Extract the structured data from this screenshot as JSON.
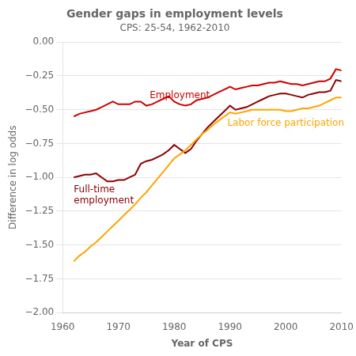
{
  "chart_data": {
    "type": "line",
    "title": "Gender gaps in employment levels",
    "subtitle": "CPS: 25-54, 1962-2010",
    "x_label": "Year of CPS",
    "y_label": "Difference in log odds",
    "x": [
      1962,
      1963,
      1964,
      1965,
      1966,
      1967,
      1968,
      1969,
      1970,
      1971,
      1972,
      1973,
      1974,
      1975,
      1976,
      1977,
      1978,
      1979,
      1980,
      1981,
      1982,
      1983,
      1984,
      1985,
      1986,
      1987,
      1988,
      1989,
      1990,
      1991,
      1992,
      1993,
      1994,
      1995,
      1996,
      1997,
      1998,
      1999,
      2000,
      2001,
      2002,
      2003,
      2004,
      2005,
      2006,
      2007,
      2008,
      2009,
      2010
    ],
    "series": [
      {
        "name": "Labor force participation",
        "color": "#ffa500",
        "values": [
          -1.62,
          -1.58,
          -1.55,
          -1.51,
          -1.48,
          -1.44,
          -1.4,
          -1.36,
          -1.32,
          -1.28,
          -1.24,
          -1.2,
          -1.15,
          -1.11,
          -1.06,
          -1.01,
          -0.96,
          -0.91,
          -0.86,
          -0.83,
          -0.8,
          -0.76,
          -0.72,
          -0.68,
          -0.65,
          -0.61,
          -0.58,
          -0.55,
          -0.52,
          -0.53,
          -0.52,
          -0.51,
          -0.5,
          -0.5,
          -0.5,
          -0.5,
          -0.5,
          -0.5,
          -0.51,
          -0.51,
          -0.5,
          -0.49,
          -0.49,
          -0.48,
          -0.47,
          -0.45,
          -0.43,
          -0.41,
          -0.41
        ]
      },
      {
        "name": "Full-time\nemployment",
        "color": "#8b0000",
        "values": [
          -1.0,
          -0.99,
          -0.98,
          -0.98,
          -0.97,
          -1.0,
          -1.03,
          -1.03,
          -1.02,
          -1.02,
          -1.0,
          -0.98,
          -0.9,
          -0.88,
          -0.87,
          -0.85,
          -0.83,
          -0.8,
          -0.76,
          -0.79,
          -0.82,
          -0.79,
          -0.73,
          -0.68,
          -0.63,
          -0.59,
          -0.55,
          -0.51,
          -0.47,
          -0.5,
          -0.49,
          -0.48,
          -0.46,
          -0.44,
          -0.42,
          -0.4,
          -0.39,
          -0.38,
          -0.38,
          -0.39,
          -0.4,
          -0.41,
          -0.39,
          -0.38,
          -0.37,
          -0.37,
          -0.36,
          -0.28,
          -0.29
        ]
      },
      {
        "name": "Employment",
        "color": "#cc0000",
        "values": [
          -0.55,
          -0.53,
          -0.52,
          -0.51,
          -0.5,
          -0.48,
          -0.46,
          -0.44,
          -0.46,
          -0.46,
          -0.46,
          -0.44,
          -0.44,
          -0.47,
          -0.46,
          -0.44,
          -0.42,
          -0.4,
          -0.44,
          -0.46,
          -0.47,
          -0.46,
          -0.43,
          -0.42,
          -0.41,
          -0.39,
          -0.37,
          -0.35,
          -0.33,
          -0.35,
          -0.34,
          -0.33,
          -0.32,
          -0.32,
          -0.31,
          -0.3,
          -0.3,
          -0.29,
          -0.3,
          -0.31,
          -0.31,
          -0.32,
          -0.31,
          -0.3,
          -0.29,
          -0.29,
          -0.27,
          -0.2,
          -0.21
        ]
      }
    ],
    "xlim": [
      1960,
      2010
    ],
    "xticks": [
      1960,
      1970,
      1980,
      1990,
      2000,
      2010
    ],
    "ylim": [
      -2.0,
      0.0
    ],
    "yticks": [
      {
        "value": 0.0,
        "label": "0.00"
      },
      {
        "value": -0.25,
        "label": "−0.25"
      },
      {
        "value": -0.5,
        "label": "−0.50"
      },
      {
        "value": -0.75,
        "label": "−0.75"
      },
      {
        "value": -1.0,
        "label": "−1.00"
      },
      {
        "value": -1.25,
        "label": "−1.25"
      },
      {
        "value": -1.5,
        "label": "−1.50"
      },
      {
        "value": -1.75,
        "label": "−1.75"
      },
      {
        "value": -2.0,
        "label": "−2.00"
      }
    ],
    "grid": "y",
    "legend": "none"
  }
}
